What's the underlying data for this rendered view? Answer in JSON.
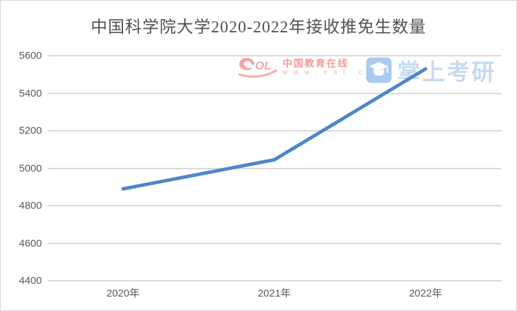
{
  "page": {
    "title": "中国科学院大学2020-2022年接收推免生数量"
  },
  "chart_data": {
    "type": "line",
    "title": "中国科学院大学2020-2022年接收推免生数量",
    "categories": [
      "2020年",
      "2021年",
      "2022年"
    ],
    "series": [
      {
        "name": "接收推免生数量",
        "values": [
          4890,
          5045,
          5530
        ]
      }
    ],
    "ylim": [
      4400,
      5600
    ],
    "ytick_interval": 200,
    "yticks_top_to_bottom": [
      "5600",
      "5400",
      "5200",
      "5000",
      "4800",
      "4600",
      "4400"
    ],
    "grid": "horizontal",
    "legend_position": "none",
    "line_color": "#4f87c7",
    "gridline_color": "#dadada",
    "tick_label_color": "#595959"
  },
  "watermarks": {
    "eol": {
      "name": "中国教育在线",
      "url": "w w w . e o l . c n",
      "brand_color": "#ef9d9d"
    },
    "zsky": {
      "name": "掌上考研",
      "icon": "graduation-cap-icon",
      "brand_color": "#c6daf2"
    }
  }
}
